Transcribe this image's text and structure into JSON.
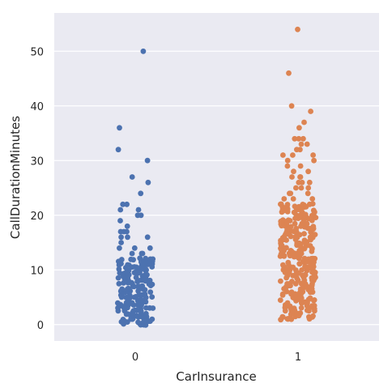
{
  "chart_data": {
    "type": "scatter",
    "subtype": "strip",
    "xlabel": "CarInsurance",
    "ylabel": "CallDurationMinutes",
    "categories": [
      "0",
      "1"
    ],
    "ylim": [
      -3,
      57
    ],
    "yticks": [
      0,
      10,
      20,
      30,
      40,
      50
    ],
    "grid": true,
    "background": "#eaeaf2",
    "series": [
      {
        "category": "0",
        "color": "#4c72b0",
        "dense_range": [
          0,
          12
        ],
        "outliers": [
          50,
          36,
          32,
          30,
          27,
          26,
          24,
          22,
          22,
          21,
          21,
          20,
          20,
          19,
          18,
          17,
          17,
          17,
          16,
          16,
          16,
          15,
          14,
          14,
          14,
          13,
          13,
          13
        ]
      },
      {
        "category": "1",
        "color": "#dd8452",
        "dense_range": [
          1,
          22
        ],
        "outliers": [
          54,
          46,
          40,
          39,
          37,
          36,
          34,
          34,
          34,
          33,
          33,
          32,
          32,
          31,
          31,
          31,
          30,
          30,
          29,
          29,
          28,
          28,
          27,
          27,
          27,
          26,
          26,
          26,
          25,
          25,
          25,
          24,
          24,
          24,
          23,
          23,
          23
        ]
      }
    ]
  }
}
